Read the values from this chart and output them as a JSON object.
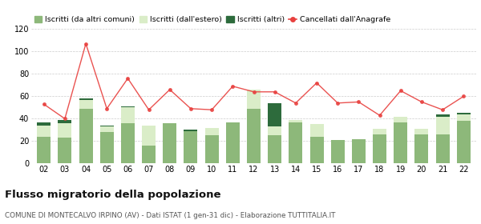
{
  "years": [
    "02",
    "03",
    "04",
    "05",
    "06",
    "07",
    "08",
    "09",
    "10",
    "11",
    "12",
    "13",
    "14",
    "15",
    "16",
    "17",
    "18",
    "19",
    "20",
    "21",
    "22"
  ],
  "iscritti_altri_comuni": [
    24,
    23,
    49,
    28,
    36,
    16,
    36,
    29,
    25,
    37,
    49,
    25,
    37,
    24,
    21,
    22,
    26,
    37,
    26,
    26,
    38
  ],
  "iscritti_estero": [
    10,
    13,
    8,
    5,
    14,
    18,
    0,
    0,
    7,
    0,
    17,
    8,
    2,
    11,
    0,
    0,
    5,
    5,
    5,
    16,
    6
  ],
  "iscritti_altri": [
    3,
    3,
    1,
    1,
    1,
    0,
    0,
    1,
    0,
    0,
    0,
    21,
    0,
    0,
    0,
    0,
    0,
    0,
    0,
    2,
    1
  ],
  "cancellati": [
    53,
    40,
    107,
    49,
    76,
    48,
    66,
    49,
    48,
    69,
    64,
    64,
    54,
    72,
    54,
    55,
    43,
    65,
    55,
    48,
    60
  ],
  "color_altri_comuni": "#8db87a",
  "color_estero": "#daedc8",
  "color_altri": "#2d6b3c",
  "color_cancellati": "#e8403e",
  "ylim": [
    0,
    120
  ],
  "yticks": [
    0,
    20,
    40,
    60,
    80,
    100,
    120
  ],
  "title": "Flusso migratorio della popolazione",
  "subtitle": "COMUNE DI MONTECALVO IRPINO (AV) - Dati ISTAT (1 gen-31 dic) - Elaborazione TUTTITALIA.IT",
  "legend_labels": [
    "Iscritti (da altri comuni)",
    "Iscritti (dall'estero)",
    "Iscritti (altri)",
    "Cancellati dall'Anagrafe"
  ],
  "bg_color": "#ffffff",
  "grid_color": "#cccccc"
}
